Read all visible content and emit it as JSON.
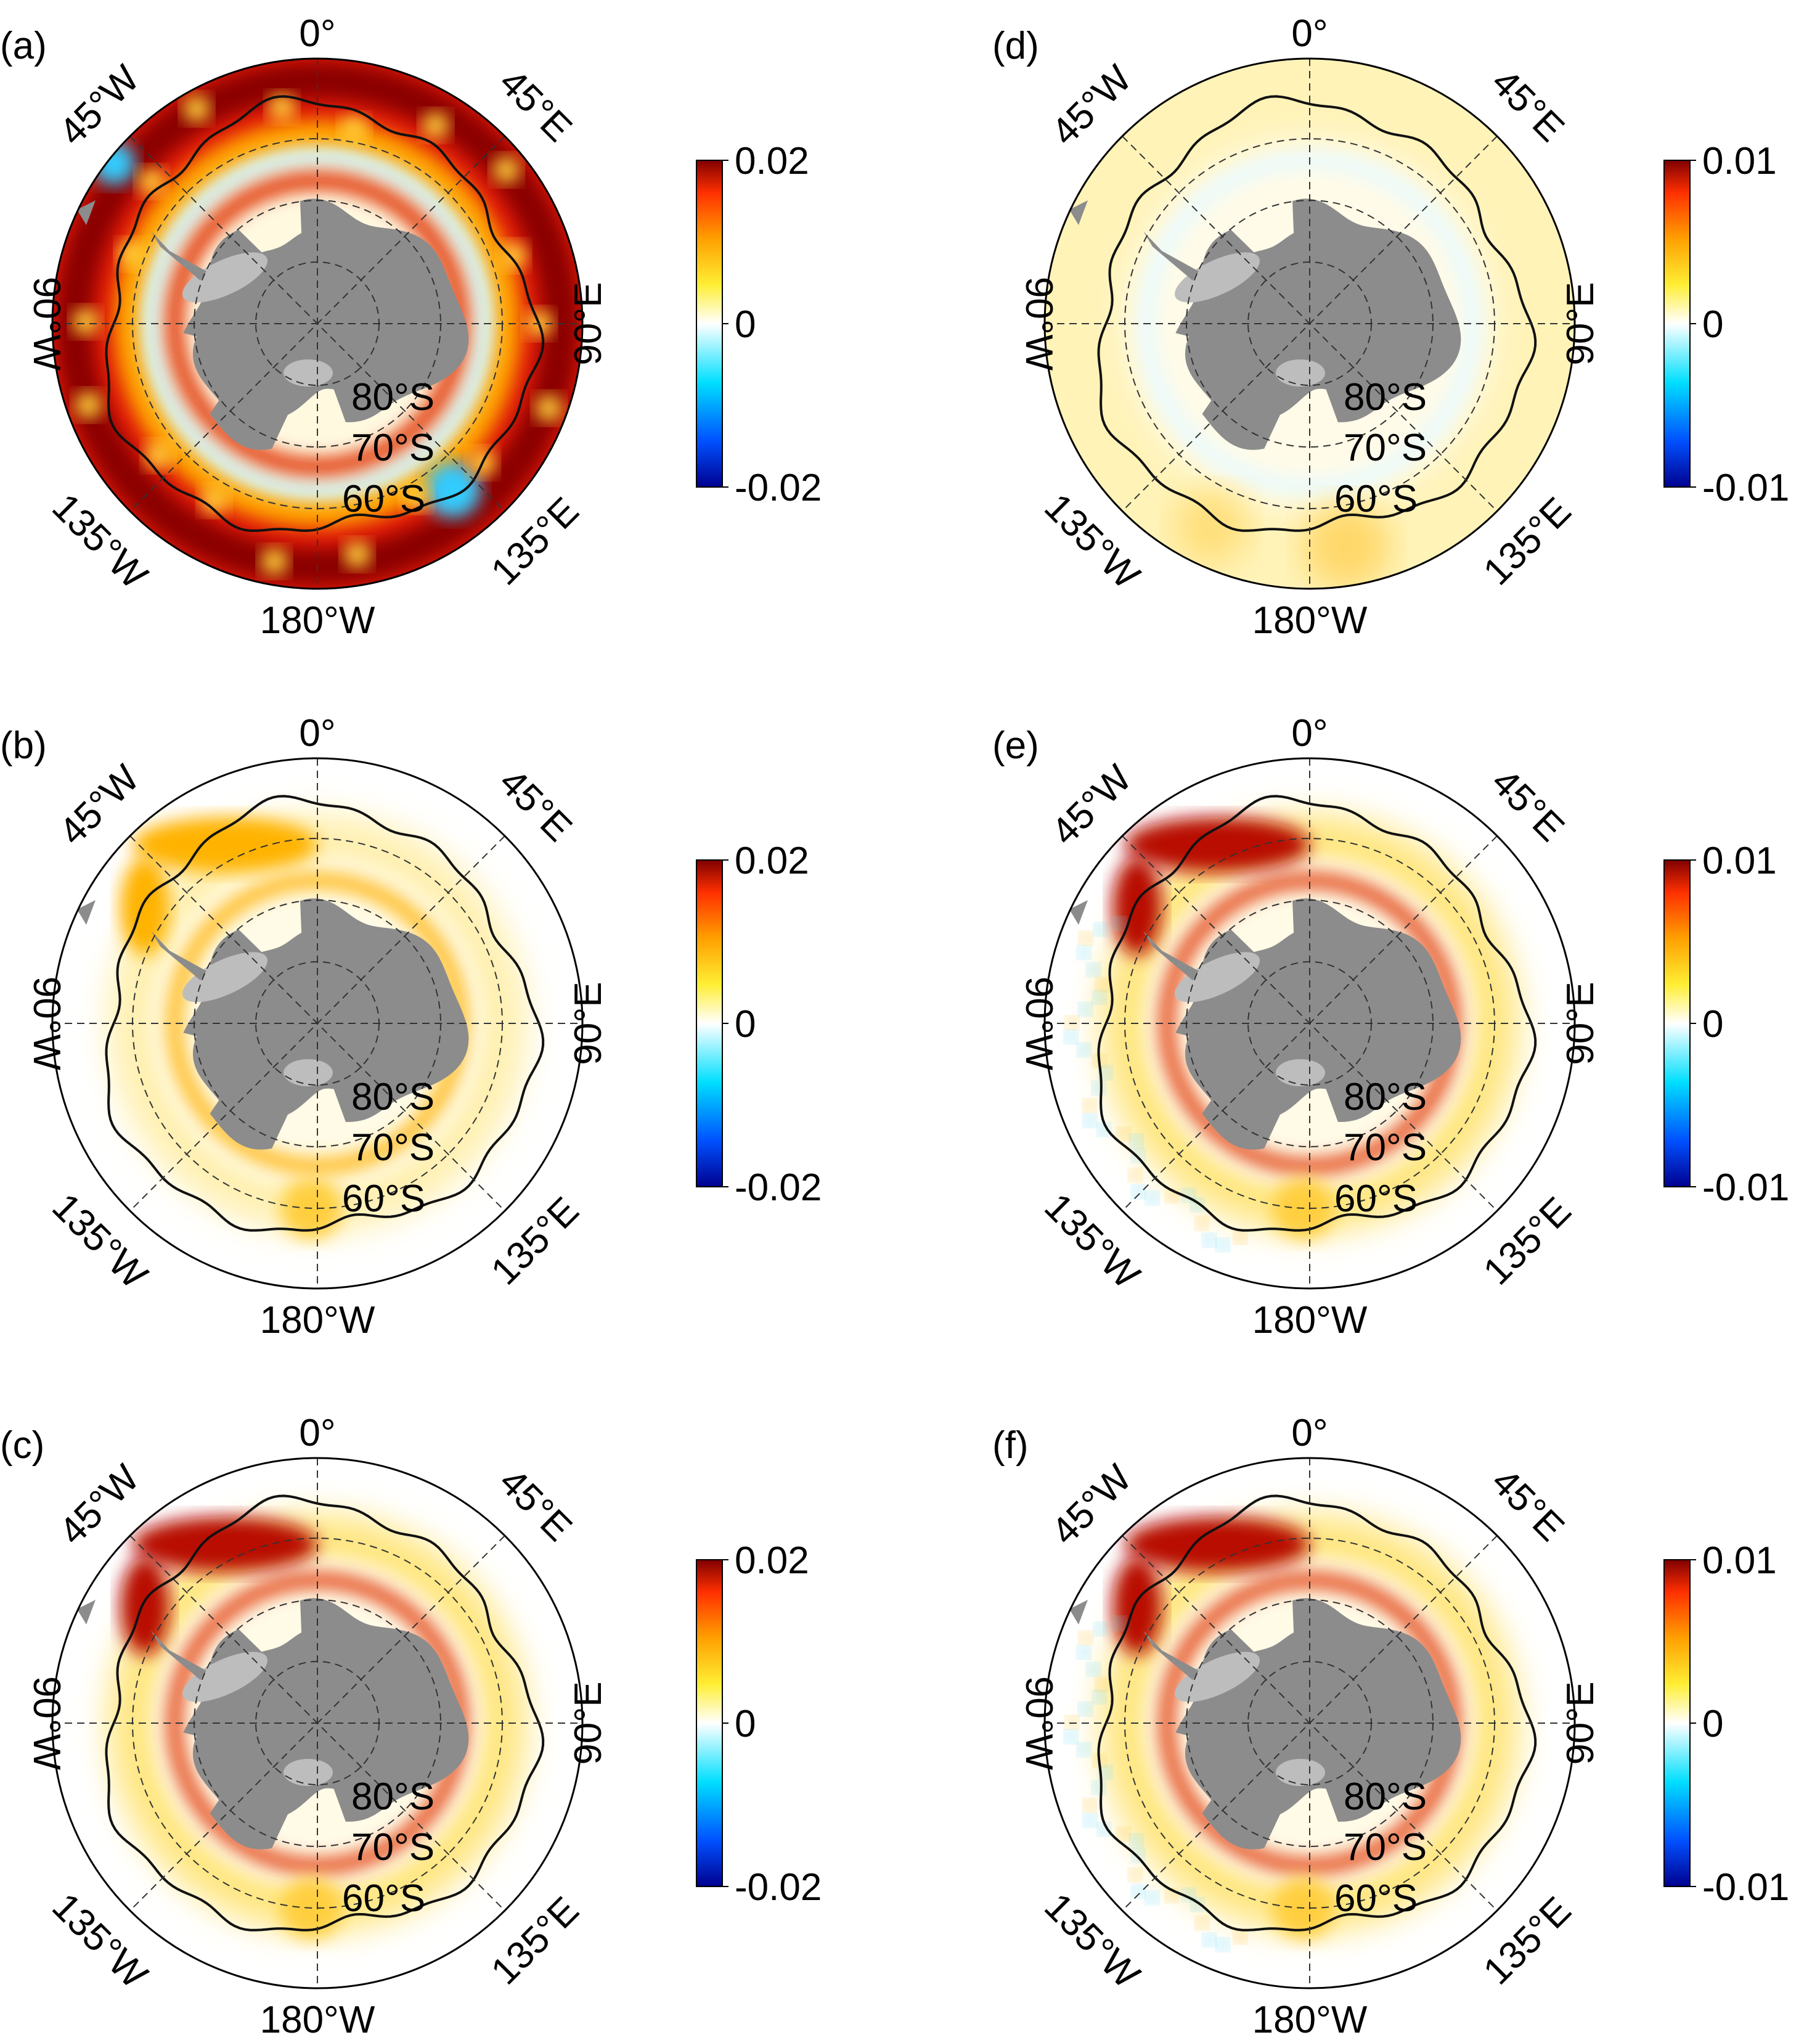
{
  "panels": [
    {
      "id": "a",
      "label": "(a)",
      "cbar_max": "0.02",
      "cbar_mid": "0",
      "cbar_min": "-0.02",
      "pattern": "strong"
    },
    {
      "id": "d",
      "label": "(d)",
      "cbar_max": "0.01",
      "cbar_mid": "0",
      "cbar_min": "-0.01",
      "pattern": "weak"
    },
    {
      "id": "b",
      "label": "(b)",
      "cbar_max": "0.02",
      "cbar_mid": "0",
      "cbar_min": "-0.02",
      "pattern": "b"
    },
    {
      "id": "e",
      "label": "(e)",
      "cbar_max": "0.01",
      "cbar_mid": "0",
      "cbar_min": "-0.01",
      "pattern": "e"
    },
    {
      "id": "c",
      "label": "(c)",
      "cbar_max": "0.02",
      "cbar_mid": "0",
      "cbar_min": "-0.02",
      "pattern": "c"
    },
    {
      "id": "f",
      "label": "(f)",
      "cbar_max": "0.01",
      "cbar_mid": "0",
      "cbar_min": "-0.01",
      "pattern": "f"
    }
  ],
  "map_labels": {
    "lon_0": "0°",
    "lon_45e": "45°E",
    "lon_90e": "90°E",
    "lon_135e": "135°E",
    "lon_180": "180°W",
    "lon_135w": "135°W",
    "lon_90w": "90°W",
    "lon_45w": "45°W",
    "lat_80": "80°S",
    "lat_70": "70°S",
    "lat_60": "60°S"
  },
  "colors": {
    "land": "#8c8c8c",
    "ice_shelf": "#bdbdbd",
    "contour": "#111111",
    "colormap": [
      "#00008f",
      "#0050ff",
      "#00dfff",
      "#ffffff",
      "#ffee33",
      "#ffa000",
      "#ff3000",
      "#800000"
    ]
  }
}
